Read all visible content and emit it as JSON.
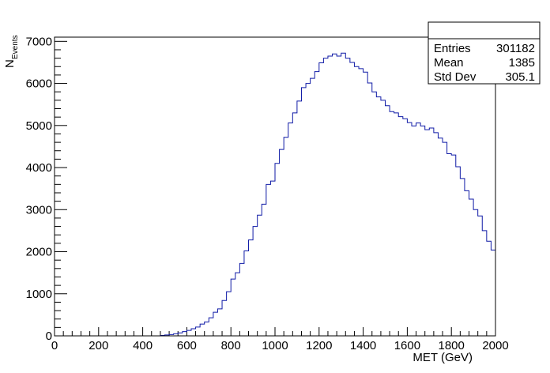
{
  "chart_data": {
    "type": "histogram",
    "xlabel": "MET (GeV)",
    "ylabel_main": "N",
    "ylabel_sub": "Events",
    "xlim": [
      0,
      2000
    ],
    "ylim": [
      0,
      7100
    ],
    "x_ticks": [
      0,
      200,
      400,
      600,
      800,
      1000,
      1200,
      1400,
      1600,
      1800,
      2000
    ],
    "y_ticks": [
      0,
      1000,
      2000,
      3000,
      4000,
      5000,
      6000,
      7000
    ],
    "bin_width": 20,
    "bin_start": 0,
    "values": [
      0,
      0,
      0,
      0,
      0,
      0,
      0,
      0,
      0,
      0,
      0,
      0,
      0,
      0,
      0,
      0,
      0,
      0,
      0,
      0,
      0,
      0,
      0,
      0,
      10,
      20,
      30,
      50,
      70,
      100,
      130,
      170,
      210,
      280,
      330,
      430,
      560,
      640,
      840,
      1050,
      1350,
      1500,
      1720,
      2020,
      2280,
      2600,
      2870,
      3130,
      3600,
      3680,
      4100,
      4430,
      4720,
      5060,
      5300,
      5580,
      5900,
      6000,
      6120,
      6280,
      6490,
      6600,
      6650,
      6700,
      6650,
      6720,
      6600,
      6500,
      6400,
      6350,
      6270,
      6010,
      5800,
      5680,
      5600,
      5470,
      5330,
      5300,
      5210,
      5160,
      5070,
      4990,
      5060,
      4990,
      4900,
      4940,
      4830,
      4700,
      4600,
      4330,
      4300,
      4020,
      3740,
      3450,
      3250,
      3000,
      2850,
      2500,
      2250,
      2040
    ],
    "line_color": "#0f1aa6",
    "grid": false
  },
  "stats": {
    "rows": [
      {
        "label": "Entries",
        "value": "301182"
      },
      {
        "label": "Mean",
        "value": "1385"
      },
      {
        "label": "Std Dev",
        "value": "305.1"
      }
    ]
  }
}
